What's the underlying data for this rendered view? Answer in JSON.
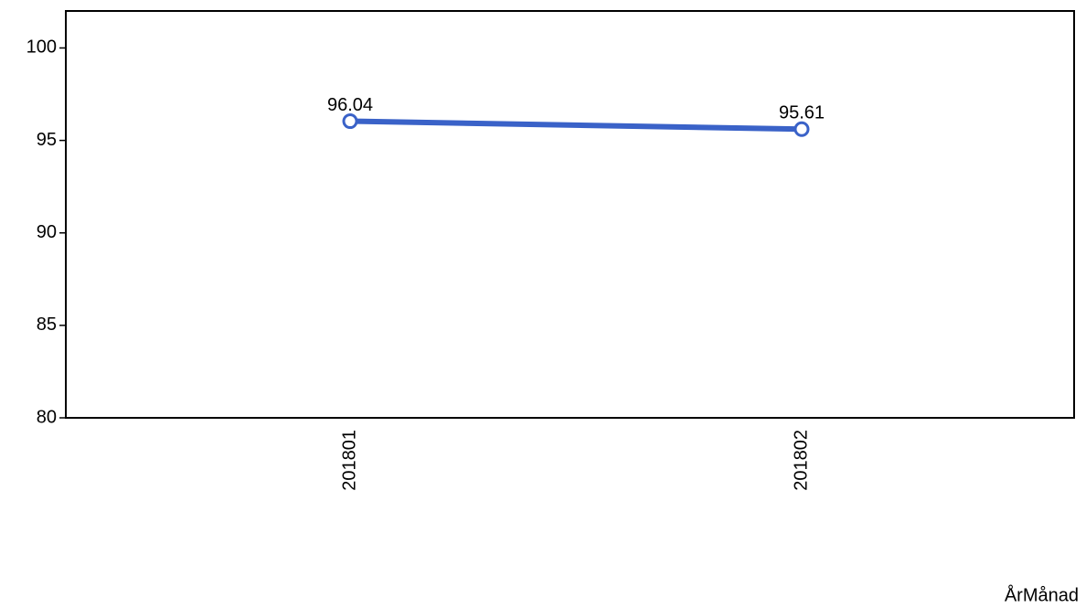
{
  "chart_data": {
    "type": "line",
    "x_label": "ÅrMånad",
    "categories": [
      "201801",
      "201802"
    ],
    "series": [
      {
        "name": null,
        "color": "#3a62c8",
        "values": [
          96.04,
          95.61
        ]
      }
    ],
    "ylim": [
      80,
      102
    ],
    "yticks": [
      80,
      85,
      90,
      95,
      100
    ],
    "grid": false
  }
}
